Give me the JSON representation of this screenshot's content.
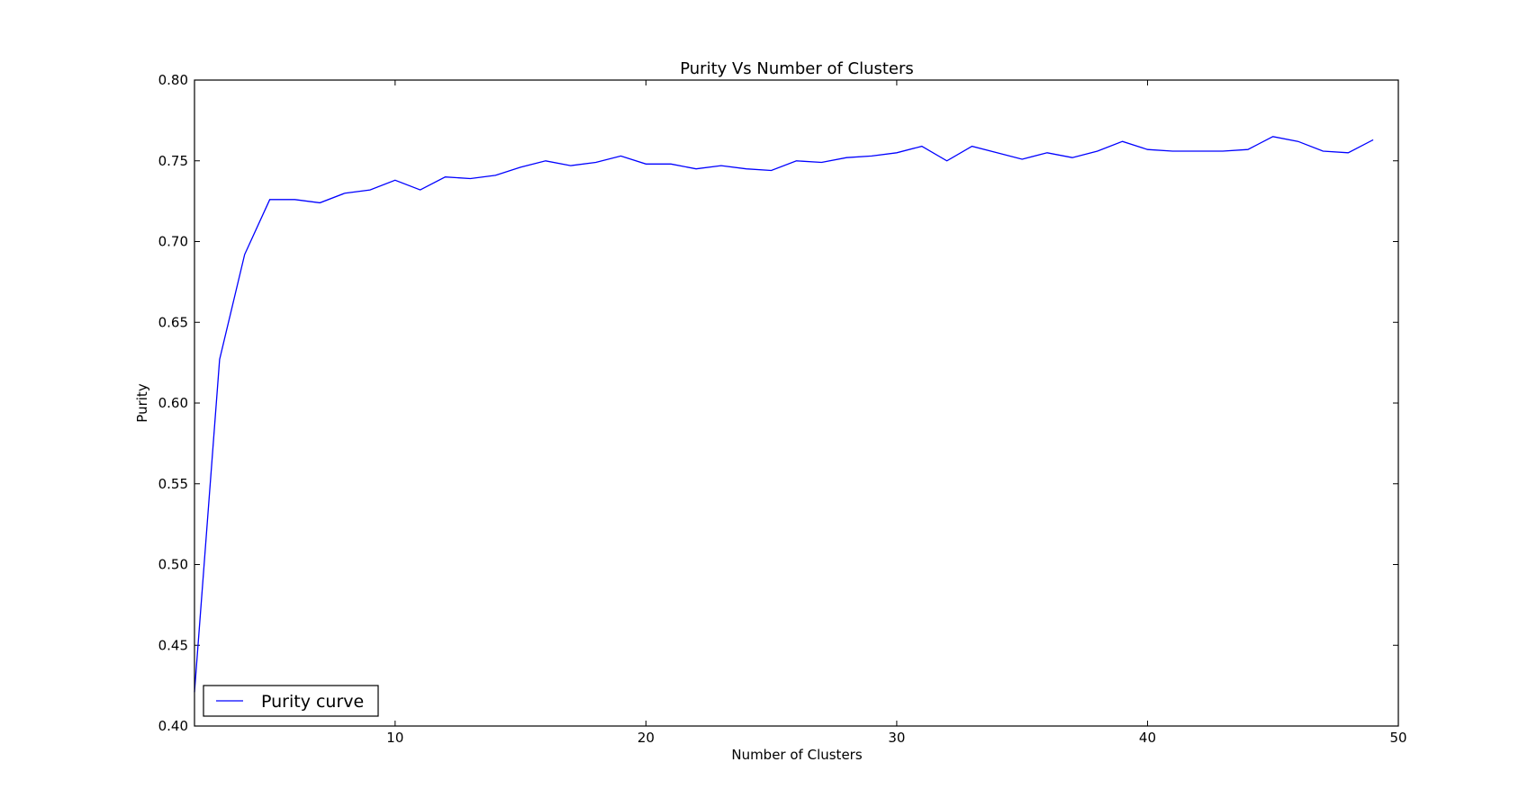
{
  "chart_data": {
    "type": "line",
    "title": "Purity Vs Number of Clusters",
    "xlabel": "Number of Clusters",
    "ylabel": "Purity",
    "xlim": [
      2,
      50
    ],
    "ylim": [
      0.4,
      0.8
    ],
    "xticks": [
      10,
      20,
      30,
      40,
      50
    ],
    "yticks": [
      0.4,
      0.45,
      0.5,
      0.55,
      0.6,
      0.65,
      0.7,
      0.75,
      0.8
    ],
    "grid": false,
    "legend": {
      "placement": "lower-left",
      "entries": [
        "Purity curve"
      ]
    },
    "series": [
      {
        "name": "Purity curve",
        "color": "#0000ff",
        "x": [
          2,
          3,
          4,
          5,
          6,
          7,
          8,
          9,
          10,
          11,
          12,
          13,
          14,
          15,
          16,
          17,
          18,
          19,
          20,
          21,
          22,
          23,
          24,
          25,
          26,
          27,
          28,
          29,
          30,
          31,
          32,
          33,
          34,
          35,
          36,
          37,
          38,
          39,
          40,
          41,
          42,
          43,
          44,
          45,
          46,
          47,
          48,
          49
        ],
        "y": [
          0.421,
          0.627,
          0.692,
          0.726,
          0.726,
          0.724,
          0.73,
          0.732,
          0.738,
          0.732,
          0.74,
          0.739,
          0.741,
          0.746,
          0.75,
          0.747,
          0.749,
          0.753,
          0.748,
          0.748,
          0.745,
          0.747,
          0.745,
          0.744,
          0.75,
          0.749,
          0.752,
          0.753,
          0.755,
          0.759,
          0.75,
          0.759,
          0.755,
          0.751,
          0.755,
          0.752,
          0.756,
          0.762,
          0.757,
          0.756,
          0.756,
          0.756,
          0.757,
          0.765,
          0.762,
          0.756,
          0.755,
          0.763
        ]
      }
    ]
  }
}
